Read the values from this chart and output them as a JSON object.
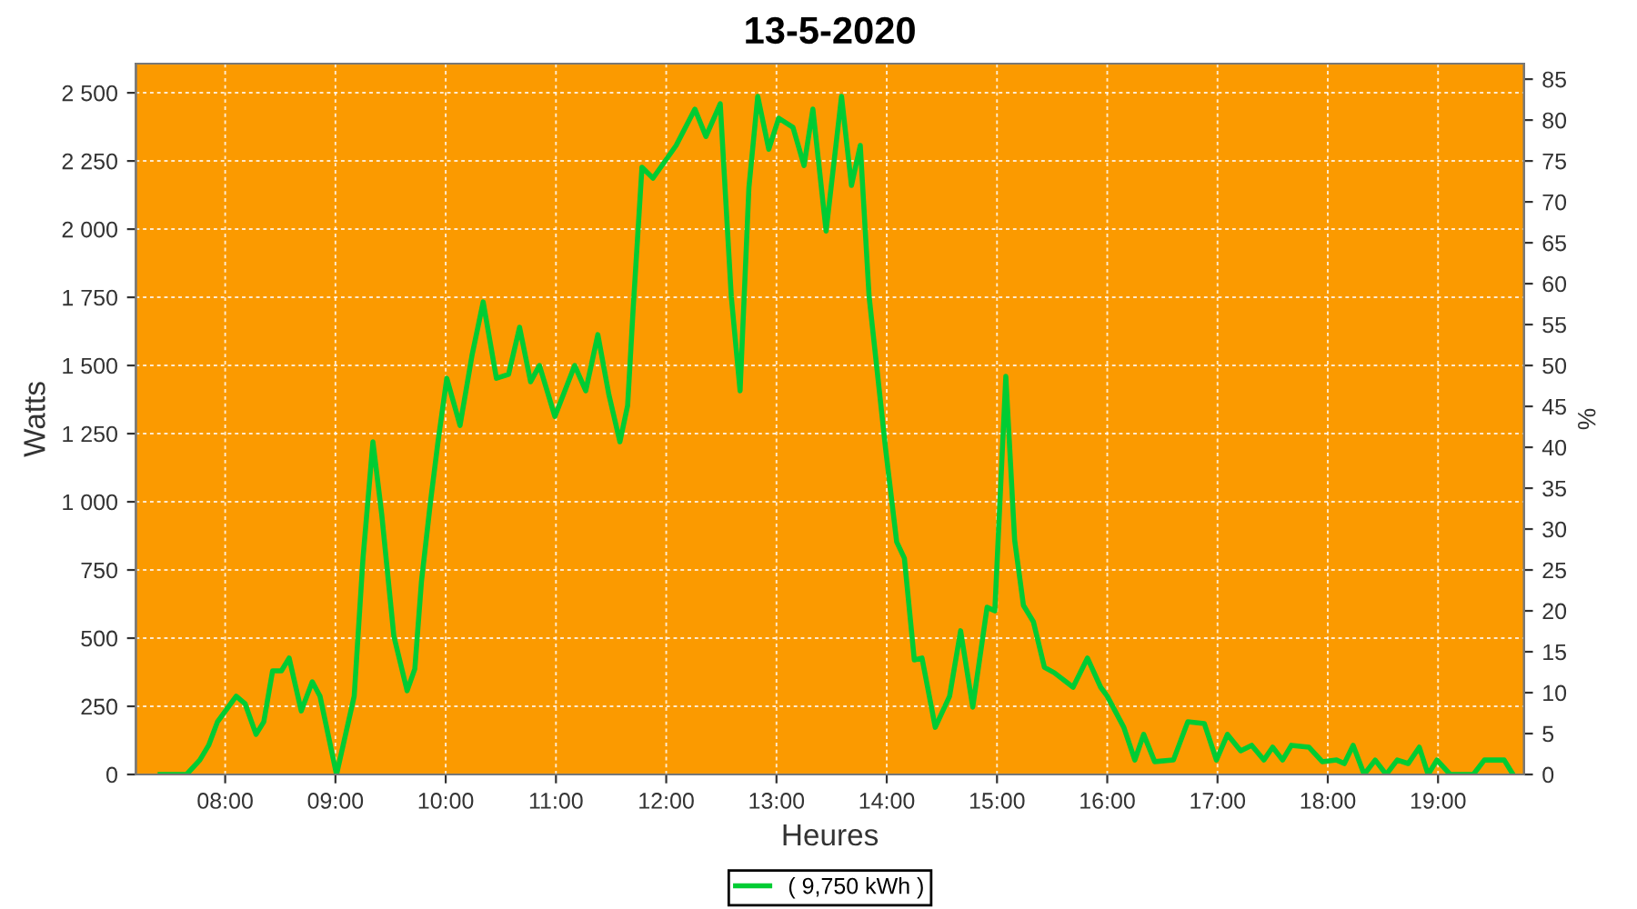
{
  "chart_data": {
    "type": "line",
    "title": "13-5-2020",
    "xlabel": "Heures",
    "ylabel": "Watts",
    "y2label": "%",
    "xlim": [
      7.19,
      19.78
    ],
    "xticks": [
      {
        "value": 8,
        "label": "08:00"
      },
      {
        "value": 9,
        "label": "09:00"
      },
      {
        "value": 10,
        "label": "10:00"
      },
      {
        "value": 11,
        "label": "11:00"
      },
      {
        "value": 12,
        "label": "12:00"
      },
      {
        "value": 13,
        "label": "13:00"
      },
      {
        "value": 14,
        "label": "14:00"
      },
      {
        "value": 15,
        "label": "15:00"
      },
      {
        "value": 16,
        "label": "16:00"
      },
      {
        "value": 17,
        "label": "17:00"
      },
      {
        "value": 18,
        "label": "18:00"
      },
      {
        "value": 19,
        "label": "19:00"
      }
    ],
    "ylim": [
      0,
      2607
    ],
    "yticks": [
      0,
      250,
      500,
      750,
      {
        "value": 1000,
        "label": "1 000"
      },
      {
        "value": 1250,
        "label": "1 250"
      },
      {
        "value": 1500,
        "label": "1 500"
      },
      {
        "value": 1750,
        "label": "1 750"
      },
      {
        "value": 2000,
        "label": "2 000"
      },
      {
        "value": 2250,
        "label": "2 250"
      },
      {
        "value": 2500,
        "label": "2 500"
      }
    ],
    "y2lim": [
      0,
      86.9
    ],
    "y2ticks": [
      0,
      5,
      10,
      15,
      20,
      25,
      30,
      35,
      40,
      45,
      50,
      55,
      60,
      65,
      70,
      75,
      80,
      85
    ],
    "grid": true,
    "legend": "bottom",
    "line_style": "solid",
    "marker": "none",
    "series": [
      {
        "name": "( 9,750 kWh )",
        "color": "#00cc33",
        "x": [
          7.41,
          7.65,
          7.77,
          7.85,
          7.93,
          8.1,
          8.18,
          8.28,
          8.35,
          8.43,
          8.51,
          8.58,
          8.69,
          8.79,
          8.86,
          9.01,
          9.17,
          9.25,
          9.34,
          9.42,
          9.53,
          9.65,
          9.72,
          9.78,
          9.86,
          9.93,
          10.01,
          10.13,
          10.24,
          10.34,
          10.46,
          10.57,
          10.67,
          10.77,
          10.85,
          10.99,
          11.17,
          11.27,
          11.38,
          11.48,
          11.58,
          11.65,
          11.7,
          11.78,
          11.88,
          12.09,
          12.26,
          12.36,
          12.49,
          12.59,
          12.67,
          12.75,
          12.83,
          12.93,
          13.02,
          13.15,
          13.25,
          13.33,
          13.45,
          13.59,
          13.68,
          13.76,
          13.84,
          13.99,
          14.09,
          14.16,
          14.25,
          14.32,
          14.44,
          14.57,
          14.67,
          14.78,
          14.91,
          14.98,
          15.08,
          15.16,
          15.24,
          15.33,
          15.43,
          15.52,
          15.69,
          15.82,
          15.94,
          16.0,
          16.15,
          16.25,
          16.33,
          16.43,
          16.6,
          16.73,
          16.88,
          16.99,
          17.09,
          17.21,
          17.31,
          17.42,
          17.5,
          17.59,
          17.67,
          17.83,
          17.95,
          18.08,
          18.15,
          18.23,
          18.33,
          18.43,
          18.53,
          18.63,
          18.73,
          18.83,
          18.91,
          18.99,
          19.11,
          19.32,
          19.42,
          19.6,
          19.68
        ],
        "values": [
          0,
          0,
          53,
          107,
          193,
          287,
          260,
          147,
          193,
          380,
          380,
          427,
          233,
          340,
          287,
          0,
          287,
          793,
          1220,
          953,
          507,
          307,
          387,
          707,
          993,
          1220,
          1453,
          1280,
          1540,
          1733,
          1453,
          1467,
          1640,
          1440,
          1500,
          1313,
          1500,
          1407,
          1613,
          1393,
          1220,
          1353,
          1707,
          2227,
          2187,
          2307,
          2440,
          2340,
          2460,
          1753,
          1407,
          2153,
          2487,
          2293,
          2407,
          2373,
          2233,
          2440,
          1993,
          2487,
          2160,
          2307,
          1753,
          1193,
          853,
          793,
          420,
          427,
          173,
          287,
          527,
          247,
          613,
          600,
          1460,
          860,
          620,
          560,
          393,
          373,
          320,
          427,
          320,
          287,
          173,
          53,
          147,
          47,
          53,
          193,
          187,
          53,
          147,
          87,
          107,
          53,
          100,
          53,
          107,
          100,
          47,
          53,
          40,
          107,
          0,
          53,
          0,
          53,
          40,
          100,
          0,
          53,
          0,
          0,
          53,
          53,
          0
        ]
      }
    ]
  }
}
